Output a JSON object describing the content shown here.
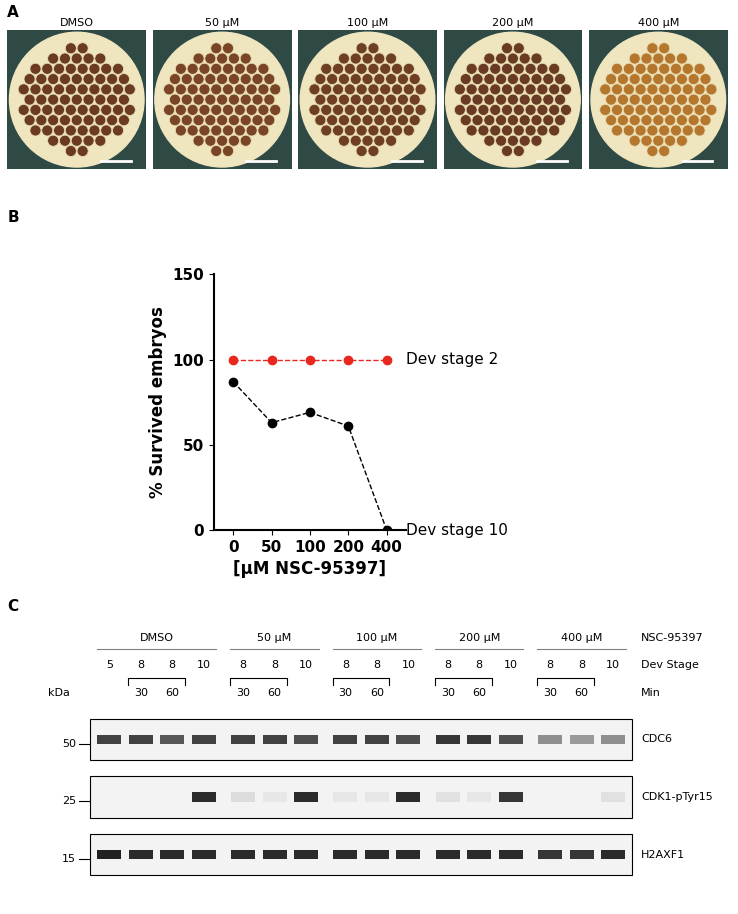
{
  "panel_labels": [
    "A",
    "B",
    "C"
  ],
  "embryo_images": {
    "labels": [
      "DMSO",
      "50 µM",
      "100 µM",
      "200 µM",
      "400 µM"
    ]
  },
  "chart_data": {
    "type": "line",
    "x_label": "[µM NSC-95397]",
    "y_label": "% Survived embryos",
    "categories": [
      "0",
      "50",
      "100",
      "200",
      "400"
    ],
    "ylim": [
      0,
      150
    ],
    "yticks": [
      0,
      50,
      100,
      150
    ],
    "grid": false,
    "series": [
      {
        "name": "Dev stage 2",
        "color": "#e8281e",
        "marker": "o",
        "line_style": "dashed",
        "values": [
          100,
          100,
          100,
          100,
          100
        ]
      },
      {
        "name": "Dev stage 10",
        "color": "#000000",
        "marker": "o",
        "line_style": "dashed",
        "values": [
          87,
          63,
          69,
          61,
          0
        ]
      }
    ]
  },
  "western_blot": {
    "treatment_label": "NSC-95397",
    "stage_label": "Dev Stage",
    "time_label": "Min",
    "mw_label": "kDa",
    "groups": [
      {
        "name": "DMSO",
        "stages": [
          5,
          8,
          8,
          10
        ],
        "minutes": [
          null,
          30,
          60,
          null
        ]
      },
      {
        "name": "50 µM",
        "stages": [
          8,
          8,
          10
        ],
        "minutes": [
          30,
          60,
          null
        ]
      },
      {
        "name": "100 µM",
        "stages": [
          8,
          8,
          10
        ],
        "minutes": [
          30,
          60,
          null
        ]
      },
      {
        "name": "200 µM",
        "stages": [
          8,
          8,
          10
        ],
        "minutes": [
          30,
          60,
          null
        ]
      },
      {
        "name": "400 µM",
        "stages": [
          8,
          8,
          10
        ],
        "minutes": [
          30,
          60,
          null
        ]
      }
    ],
    "bands": [
      {
        "name": "CDC6",
        "mw_marker": 50,
        "intensities": [
          0.8,
          0.8,
          0.7,
          0.8,
          0.8,
          0.8,
          0.75,
          0.8,
          0.8,
          0.75,
          0.85,
          0.85,
          0.75,
          0.45,
          0.4,
          0.45
        ]
      },
      {
        "name": "CDK1-pTyr15",
        "mw_marker": 25,
        "intensities": [
          0.0,
          0.0,
          0.0,
          0.9,
          0.1,
          0.05,
          0.9,
          0.05,
          0.05,
          0.9,
          0.08,
          0.05,
          0.85,
          0.0,
          0.0,
          0.08
        ]
      },
      {
        "name": "H2AXF1",
        "mw_marker": 15,
        "intensities": [
          0.95,
          0.9,
          0.9,
          0.9,
          0.9,
          0.9,
          0.9,
          0.9,
          0.9,
          0.9,
          0.9,
          0.9,
          0.9,
          0.85,
          0.85,
          0.9
        ]
      }
    ]
  }
}
